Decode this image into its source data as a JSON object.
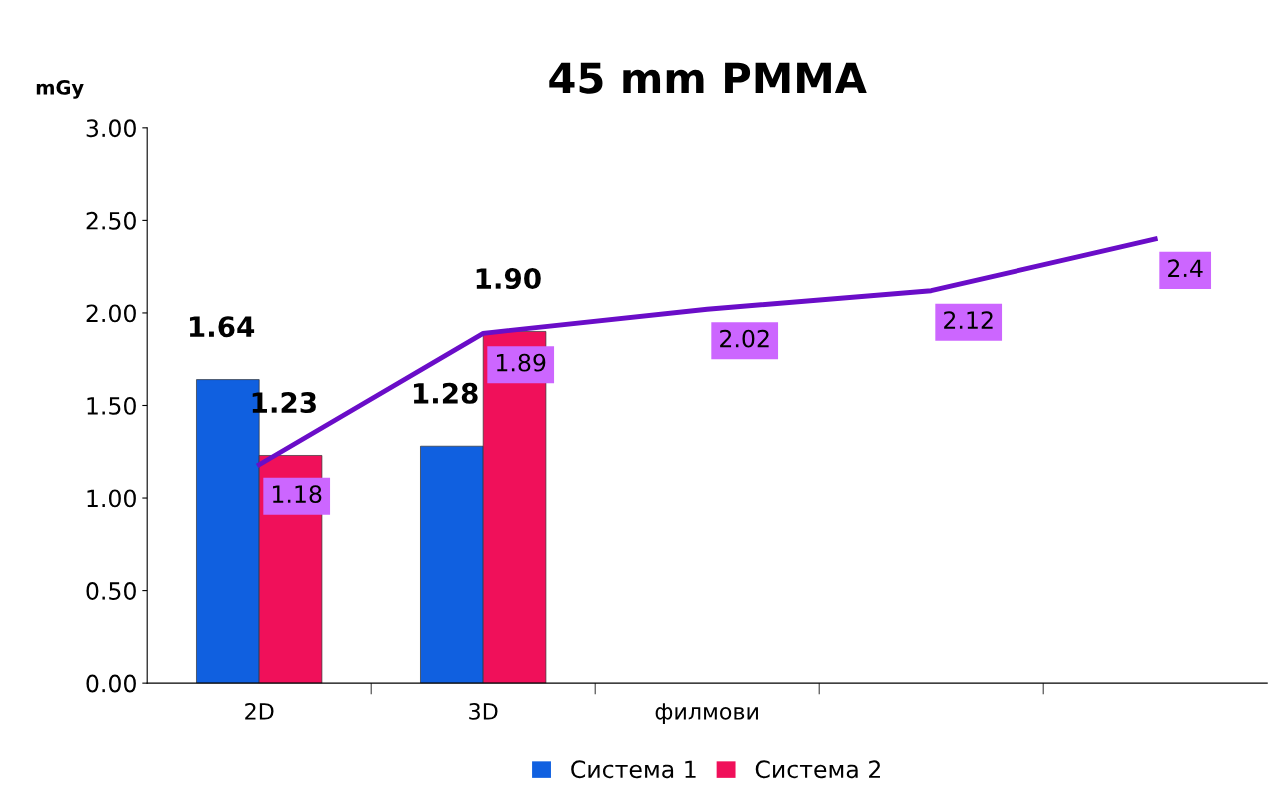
{
  "chart_data": {
    "type": "bar",
    "title": "45 mm PMMA",
    "ylabel": "mGy",
    "categories": [
      "2D",
      "3D",
      "филмови",
      null,
      null
    ],
    "series": [
      {
        "name": "Система 1",
        "color": "#1060e0",
        "values": [
          1.64,
          1.28,
          null,
          null,
          null
        ],
        "value_labels": [
          "1.64",
          "1.28",
          null,
          null,
          null
        ]
      },
      {
        "name": "Система 2",
        "color": "#f0105a",
        "values": [
          1.23,
          1.9,
          null,
          null,
          null
        ],
        "value_labels": [
          "1.23",
          "1.90",
          null,
          null,
          null
        ]
      },
      {
        "type": "line",
        "color": "#6a0dc8",
        "values": [
          1.18,
          1.89,
          2.02,
          2.12,
          2.4
        ],
        "value_labels": [
          "1.18",
          "1.89",
          "2.02",
          "2.12",
          "2.4"
        ]
      }
    ],
    "ylim": [
      0,
      3
    ],
    "yticks": [
      {
        "value": 0,
        "label": "0.00"
      },
      {
        "value": 0.5,
        "label": "0.50"
      },
      {
        "value": 1,
        "label": "1.00"
      },
      {
        "value": 1.5,
        "label": "1.50"
      },
      {
        "value": 2,
        "label": "2.00"
      },
      {
        "value": 2.5,
        "label": "2.50"
      },
      {
        "value": 3,
        "label": "3.00"
      }
    ],
    "grid": false,
    "legend": "bottom",
    "marker": "none",
    "line_style": "solid"
  }
}
